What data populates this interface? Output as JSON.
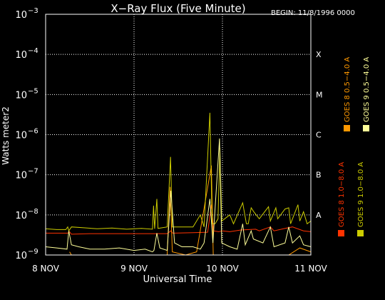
{
  "chart_data": {
    "type": "line",
    "title": "X−Ray Flux (Five Minute)",
    "begin_label": "BEGIN: 11/8/1996 0000",
    "ylabel": "Watts meter2",
    "xlabel": "Universal Time",
    "y_scale": "log",
    "ylim": [
      1e-09,
      0.001
    ],
    "xlim": [
      0,
      72
    ],
    "y_ticks": [
      {
        "exp": "−9",
        "value": 1e-09
      },
      {
        "exp": "−8",
        "value": 1e-08
      },
      {
        "exp": "−7",
        "value": 1e-07
      },
      {
        "exp": "−6",
        "value": 1e-06
      },
      {
        "exp": "−5",
        "value": 1e-05
      },
      {
        "exp": "−4",
        "value": 0.0001
      },
      {
        "exp": "−3",
        "value": 0.001
      }
    ],
    "x_ticks": [
      {
        "label": "8 NOV",
        "value": 0
      },
      {
        "label": "9 NOV",
        "value": 24
      },
      {
        "label": "10 NOV",
        "value": 48
      },
      {
        "label": "11 NOV",
        "value": 72
      }
    ],
    "flare_classes": [
      {
        "label": "A",
        "value": 1e-08
      },
      {
        "label": "B",
        "value": 1e-07
      },
      {
        "label": "C",
        "value": 1e-06
      },
      {
        "label": "M",
        "value": 1e-05
      },
      {
        "label": "X",
        "value": 0.0001
      }
    ],
    "grid": true,
    "legend": [
      {
        "label": "GOES 8 1.0−8.0 A",
        "color": "#ff3300"
      },
      {
        "label": "GOES 8 0.5−4.0 A",
        "color": "#ff9900"
      },
      {
        "label": "GOES 9 1.0−8.0 A",
        "color": "#cccc00"
      },
      {
        "label": "GOES 9 0.5−4.0 A",
        "color": "#ffff99"
      }
    ],
    "series": [
      {
        "name": "GOES 8 1.0−8.0 A",
        "color": "#ff3300",
        "points": [
          [
            0,
            3.5e-09
          ],
          [
            6,
            3.5e-09
          ],
          [
            6.5,
            3.8e-09
          ],
          [
            7,
            3.3e-09
          ],
          [
            12,
            3.4e-09
          ],
          [
            18,
            3.4e-09
          ],
          [
            24,
            3.4e-09
          ],
          [
            30,
            3.4e-09
          ],
          [
            33,
            3.4e-09
          ],
          [
            34,
            4e-09
          ],
          [
            34.5,
            3.5e-09
          ],
          [
            40,
            3.6e-09
          ],
          [
            44,
            3.7e-09
          ],
          [
            45,
            1.8e-08
          ],
          [
            45.6,
            4e-09
          ],
          [
            47,
            3.8e-09
          ],
          [
            48,
            4e-09
          ],
          [
            50,
            3.8e-09
          ],
          [
            53,
            4.2e-09
          ],
          [
            57,
            4.4e-09
          ],
          [
            58,
            4e-09
          ],
          [
            61,
            5e-09
          ],
          [
            62,
            4e-09
          ],
          [
            65,
            4.6e-09
          ],
          [
            67,
            5e-09
          ],
          [
            70,
            4e-09
          ],
          [
            72,
            3.8e-09
          ]
        ]
      },
      {
        "name": "GOES 8 0.5−4.0 A",
        "color": "#ff9900",
        "points": [
          [
            6.5,
            1.2e-09
          ],
          [
            7,
            1e-09
          ],
          [
            14,
            1e-09
          ],
          [
            24,
            1e-09
          ],
          [
            33,
            1e-09
          ],
          [
            33.8,
            5e-08
          ],
          [
            34.4,
            1.2e-09
          ],
          [
            38,
            1e-09
          ],
          [
            41,
            1.2e-09
          ],
          [
            45,
            1.7e-07
          ],
          [
            45.5,
            1e-09
          ],
          [
            50,
            1e-09
          ],
          [
            60,
            1e-09
          ],
          [
            66,
            1e-09
          ],
          [
            69,
            1.5e-09
          ],
          [
            72,
            1.2e-09
          ]
        ]
      },
      {
        "name": "GOES 9 1.0−8.0 A",
        "color": "#cccc00",
        "points": [
          [
            0,
            4.5e-09
          ],
          [
            3,
            4.3e-09
          ],
          [
            5.5,
            4.3e-09
          ],
          [
            6,
            5e-09
          ],
          [
            6.3,
            4e-09
          ],
          [
            7,
            5e-09
          ],
          [
            10,
            4.8e-09
          ],
          [
            14,
            4.5e-09
          ],
          [
            18,
            4.7e-09
          ],
          [
            22,
            4.4e-09
          ],
          [
            26,
            4.6e-09
          ],
          [
            29,
            4.4e-09
          ],
          [
            29.3,
            1.7e-08
          ],
          [
            29.6,
            4.5e-09
          ],
          [
            30.2,
            2.5e-08
          ],
          [
            30.5,
            4.6e-09
          ],
          [
            33,
            5e-09
          ],
          [
            33.9,
            2.8e-07
          ],
          [
            34.4,
            5e-09
          ],
          [
            38,
            5e-09
          ],
          [
            40,
            5e-09
          ],
          [
            42,
            1e-08
          ],
          [
            43,
            5e-09
          ],
          [
            44.6,
            3.5e-06
          ],
          [
            45.2,
            6e-09
          ],
          [
            46,
            6e-09
          ],
          [
            46.8,
            8e-09
          ],
          [
            47.3,
            4.7e-07
          ],
          [
            47.8,
            7e-09
          ],
          [
            50,
            1e-08
          ],
          [
            51,
            6e-09
          ],
          [
            53.5,
            2e-08
          ],
          [
            54.5,
            6e-09
          ],
          [
            55,
            6e-09
          ],
          [
            55.8,
            1.5e-08
          ],
          [
            56.5,
            1.2e-08
          ],
          [
            58,
            8e-09
          ],
          [
            60.5,
            1.6e-08
          ],
          [
            61,
            7e-09
          ],
          [
            62.5,
            1.5e-08
          ],
          [
            63,
            8e-09
          ],
          [
            65,
            1.4e-08
          ],
          [
            66,
            1.5e-08
          ],
          [
            66.5,
            6e-09
          ],
          [
            68.5,
            1.8e-08
          ],
          [
            69,
            7e-09
          ],
          [
            70,
            1.2e-08
          ],
          [
            71,
            6e-09
          ],
          [
            72,
            7e-09
          ]
        ]
      },
      {
        "name": "GOES 9 0.5−4.0 A",
        "color": "#ffff99",
        "points": [
          [
            0,
            1.6e-09
          ],
          [
            3,
            1.5e-09
          ],
          [
            5.8,
            1.4e-09
          ],
          [
            6.3,
            4e-09
          ],
          [
            7,
            1.8e-09
          ],
          [
            9,
            1.6e-09
          ],
          [
            12,
            1.4e-09
          ],
          [
            16,
            1.4e-09
          ],
          [
            20,
            1.5e-09
          ],
          [
            24,
            1.3e-09
          ],
          [
            27,
            1.4e-09
          ],
          [
            29,
            1.2e-09
          ],
          [
            29.4,
            1.3e-09
          ],
          [
            30.2,
            3.5e-09
          ],
          [
            31,
            1.5e-09
          ],
          [
            33,
            1.3e-09
          ],
          [
            34,
            4e-08
          ],
          [
            35,
            2e-09
          ],
          [
            37,
            1.6e-09
          ],
          [
            40,
            1.6e-09
          ],
          [
            42,
            1.4e-09
          ],
          [
            43,
            2e-09
          ],
          [
            44.6,
            2.5e-08
          ],
          [
            45.4,
            2e-09
          ],
          [
            47.2,
            8e-07
          ],
          [
            47.8,
            2e-09
          ],
          [
            50,
            1.6e-09
          ],
          [
            52,
            1.4e-09
          ],
          [
            53.5,
            6e-09
          ],
          [
            54.2,
            1.8e-09
          ],
          [
            55.8,
            4e-09
          ],
          [
            56.4,
            2.5e-09
          ],
          [
            59,
            2e-09
          ],
          [
            61,
            5e-09
          ],
          [
            62,
            1.6e-09
          ],
          [
            65,
            2e-09
          ],
          [
            66,
            5e-09
          ],
          [
            67,
            2e-09
          ],
          [
            69,
            3e-09
          ],
          [
            70,
            1.8e-09
          ],
          [
            72,
            1.6e-09
          ]
        ]
      }
    ]
  }
}
